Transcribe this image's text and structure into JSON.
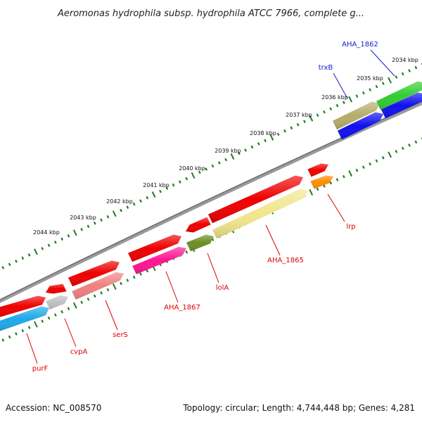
{
  "title": "Aeromonas hydrophila subsp. hydrophila ATCC 7966, complete g...",
  "footer": {
    "accession": "Accession: NC_008570",
    "topology": "Topology: circular; Length: 4,744,448 bp; Genes: 4,281"
  },
  "colors": {
    "backbone": "#808080",
    "tick": "#1e7a1e",
    "red_label": "#dd0000",
    "blue_label": "#1a1acc"
  },
  "scale_labels": [
    "2034 kbp",
    "2035 kbp",
    "2036 kbp",
    "2037 kbp",
    "2038 kbp",
    "2039 kbp",
    "2040 kbp",
    "2041 kbp",
    "2042 kbp",
    "2043 kbp",
    "2044 kbp"
  ],
  "genes": [
    {
      "name": "AHA_1862",
      "color": "#2e8bd8",
      "label_color": "#1a1acc"
    },
    {
      "name": "trxB",
      "color": "#b5ad6a",
      "label_color": "#1a1acc"
    },
    {
      "name": "lrp",
      "color": "#ff8c00",
      "label_color": "#dd0000"
    },
    {
      "name": "AHA_1865",
      "color": "#f0e68c",
      "label_color": "#dd0000"
    },
    {
      "name": "lolA",
      "color": "#6b8e23",
      "label_color": "#dd0000"
    },
    {
      "name": "AHA_1867",
      "color": "#ff1493",
      "label_color": "#dd0000"
    },
    {
      "name": "serS",
      "color": "#f08080",
      "label_color": "#dd0000"
    },
    {
      "name": "cvpA",
      "color": "#c0c0c0",
      "label_color": "#dd0000"
    },
    {
      "name": "purF",
      "color": "#1ea8e8",
      "label_color": "#dd0000"
    }
  ]
}
